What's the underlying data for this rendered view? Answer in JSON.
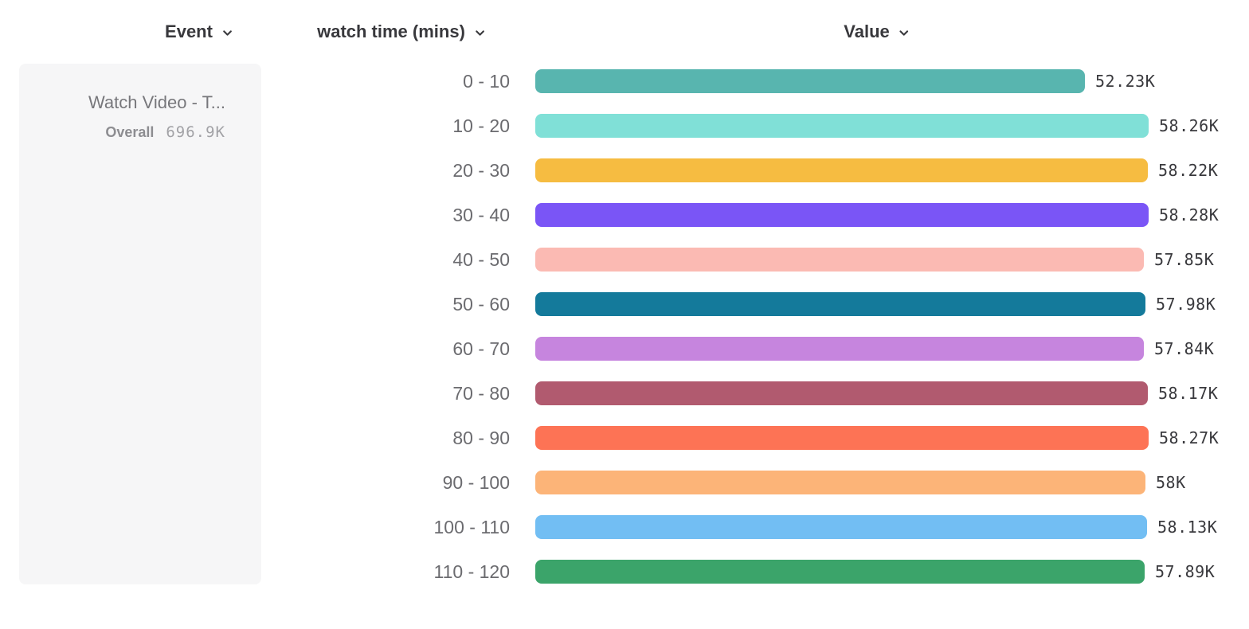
{
  "headers": {
    "event": {
      "label": "Event"
    },
    "breakdown": {
      "label": "watch time (mins)"
    },
    "value": {
      "label": "Value"
    }
  },
  "panel": {
    "event_name": "Watch Video - T...",
    "overall_label": "Overall",
    "overall_value": "696.9K"
  },
  "chart_data": {
    "type": "bar",
    "orientation": "horizontal",
    "title": "",
    "xlabel": "Value",
    "ylabel": "watch time (mins)",
    "grid": false,
    "legend": false,
    "xlim": [
      0,
      58280
    ],
    "categories": [
      "0 - 10",
      "10 - 20",
      "20 - 30",
      "30 - 40",
      "40 - 50",
      "50 - 60",
      "60 - 70",
      "70 - 80",
      "80 - 90",
      "90 - 100",
      "100 - 110",
      "110 - 120"
    ],
    "values": [
      52230,
      58260,
      58220,
      58280,
      57850,
      57980,
      57840,
      58170,
      58270,
      58000,
      58130,
      57890
    ],
    "value_labels": [
      "52.23K",
      "58.26K",
      "58.22K",
      "58.28K",
      "57.85K",
      "57.98K",
      "57.84K",
      "58.17K",
      "58.27K",
      "58K",
      "58.13K",
      "57.89K"
    ],
    "colors": [
      "#58b5af",
      "#80e0d7",
      "#f6bc41",
      "#7a55f6",
      "#fbbab3",
      "#147a9b",
      "#c685de",
      "#b15a6f",
      "#fd7355",
      "#fcb478",
      "#72bef3",
      "#3ba46a"
    ],
    "overall": {
      "label": "Overall",
      "value": "696.9K",
      "event": "Watch Video - T..."
    }
  }
}
